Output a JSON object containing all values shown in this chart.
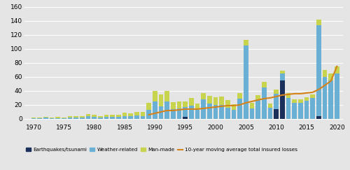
{
  "years": [
    1970,
    1971,
    1972,
    1973,
    1974,
    1975,
    1976,
    1977,
    1978,
    1979,
    1980,
    1981,
    1982,
    1983,
    1984,
    1985,
    1986,
    1987,
    1988,
    1989,
    1990,
    1991,
    1992,
    1993,
    1994,
    1995,
    1996,
    1997,
    1998,
    1999,
    2000,
    2001,
    2002,
    2003,
    2004,
    2005,
    2006,
    2007,
    2008,
    2009,
    2010,
    2011,
    2012,
    2013,
    2014,
    2015,
    2016,
    2017,
    2018,
    2019,
    2020
  ],
  "earthquake": [
    0,
    0,
    0,
    0,
    0,
    0,
    0,
    0,
    0,
    0,
    0,
    0,
    0,
    0,
    0,
    0,
    0,
    0,
    0,
    0,
    0,
    0,
    0,
    0,
    0,
    3,
    0,
    0,
    0,
    0,
    0,
    0,
    0,
    0,
    0,
    0,
    0,
    0,
    0,
    0,
    14,
    55,
    0,
    0,
    0,
    0,
    0,
    4,
    0,
    0,
    0
  ],
  "weather": [
    1,
    1,
    2,
    1,
    1,
    1,
    2,
    2,
    2,
    4,
    3,
    2,
    3,
    3,
    3,
    4,
    4,
    5,
    4,
    13,
    25,
    18,
    25,
    14,
    15,
    14,
    19,
    13,
    28,
    22,
    20,
    20,
    16,
    13,
    29,
    105,
    15,
    28,
    45,
    16,
    22,
    10,
    30,
    23,
    23,
    26,
    30,
    130,
    60,
    55,
    65
  ],
  "manmade": [
    1,
    1,
    1,
    1,
    2,
    1,
    2,
    2,
    2,
    3,
    3,
    2,
    3,
    3,
    3,
    5,
    4,
    5,
    6,
    10,
    15,
    17,
    15,
    10,
    10,
    8,
    11,
    9,
    9,
    11,
    11,
    12,
    11,
    8,
    8,
    8,
    8,
    6,
    8,
    6,
    6,
    4,
    7,
    5,
    5,
    5,
    5,
    8,
    10,
    10,
    10
  ],
  "moving_avg": [
    null,
    null,
    null,
    null,
    null,
    null,
    null,
    null,
    null,
    null,
    null,
    null,
    null,
    null,
    null,
    null,
    null,
    null,
    null,
    6,
    8,
    10,
    12,
    12,
    13,
    14,
    14,
    14,
    15,
    16,
    17,
    18,
    19,
    19,
    20,
    23,
    25,
    27,
    29,
    30,
    32,
    34,
    35,
    36,
    36,
    37,
    38,
    42,
    48,
    54,
    75
  ],
  "color_earthquake": "#1a2f5a",
  "color_weather": "#6ab0d4",
  "color_manmade": "#c8d44e",
  "color_moving_avg": "#d4831a",
  "background_color": "#e5e5e5",
  "ylim": [
    -5,
    160
  ],
  "yticks": [
    0,
    20,
    40,
    60,
    80,
    100,
    120,
    140,
    160
  ],
  "xticks": [
    1970,
    1975,
    1980,
    1985,
    1990,
    1995,
    2000,
    2005,
    2010,
    2015,
    2020
  ]
}
